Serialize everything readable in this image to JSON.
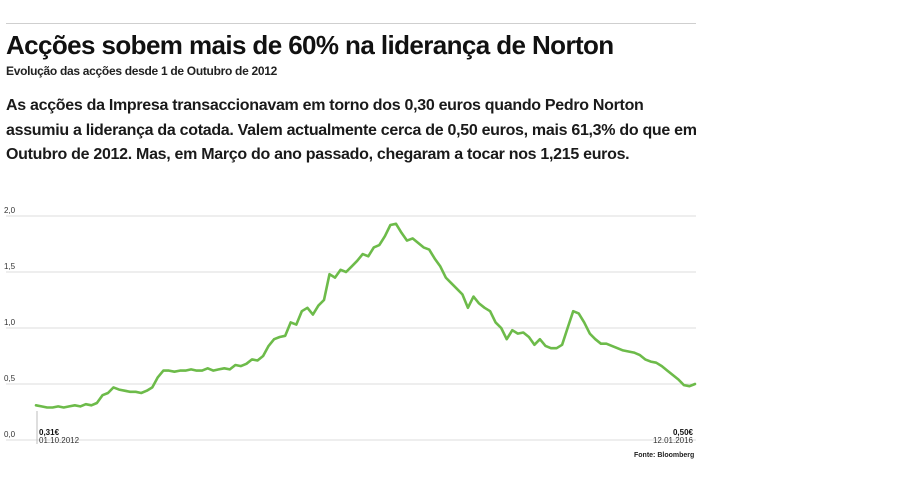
{
  "headline": {
    "title": "Acções sobem mais de 60% na liderança de Norton",
    "subtitle": "Evolução das acções desde 1 de Outubro de 2012",
    "body": "As acções da Impresa transaccionavam em torno dos 0,30 euros quando Pedro Norton assumiu a liderança da cotada. Valem actualmente cerca de 0,50 euros, mais 61,3% do que em Outubro de 2012. Mas, em Março do ano passado, chegaram a tocar nos 1,215 euros."
  },
  "source": "Fonte: Bloomberg",
  "colors": {
    "line": "#6dbb4a",
    "grid": "#dcdcdc",
    "text": "#111111"
  },
  "chart_data": {
    "type": "line",
    "ylim": [
      0,
      2
    ],
    "yticks": [
      "0,0",
      "0,5",
      "1,0",
      "1,5",
      "2,0"
    ],
    "ytick_values": [
      0,
      0.5,
      1.0,
      1.5,
      2.0
    ],
    "grid": true,
    "start": {
      "value_label": "0,31€",
      "date_label": "01.10.2012"
    },
    "end": {
      "value_label": "0,50€",
      "date_label": "12.01.2016"
    },
    "series": [
      {
        "values": [
          0.31,
          0.3,
          0.29,
          0.29,
          0.3,
          0.29,
          0.3,
          0.31,
          0.3,
          0.32,
          0.31,
          0.33,
          0.4,
          0.42,
          0.47,
          0.45,
          0.44,
          0.43,
          0.43,
          0.42,
          0.44,
          0.47,
          0.56,
          0.62,
          0.62,
          0.61,
          0.62,
          0.62,
          0.63,
          0.62,
          0.62,
          0.64,
          0.62,
          0.63,
          0.64,
          0.63,
          0.67,
          0.66,
          0.68,
          0.72,
          0.71,
          0.75,
          0.84,
          0.9,
          0.92,
          0.93,
          1.05,
          1.03,
          1.15,
          1.18,
          1.12,
          1.2,
          1.25,
          1.48,
          1.45,
          1.52,
          1.5,
          1.55,
          1.6,
          1.66,
          1.64,
          1.72,
          1.74,
          1.82,
          1.92,
          1.93,
          1.85,
          1.78,
          1.8,
          1.76,
          1.72,
          1.7,
          1.62,
          1.55,
          1.45,
          1.4,
          1.35,
          1.3,
          1.18,
          1.28,
          1.22,
          1.18,
          1.15,
          1.05,
          1.0,
          0.9,
          0.98,
          0.95,
          0.96,
          0.92,
          0.85,
          0.9,
          0.84,
          0.82,
          0.82,
          0.85,
          1.0,
          1.15,
          1.13,
          1.05,
          0.95,
          0.9,
          0.86,
          0.86,
          0.84,
          0.82,
          0.8,
          0.79,
          0.78,
          0.76,
          0.72,
          0.7,
          0.69,
          0.66,
          0.62,
          0.58,
          0.54,
          0.49,
          0.48,
          0.5
        ]
      }
    ]
  }
}
